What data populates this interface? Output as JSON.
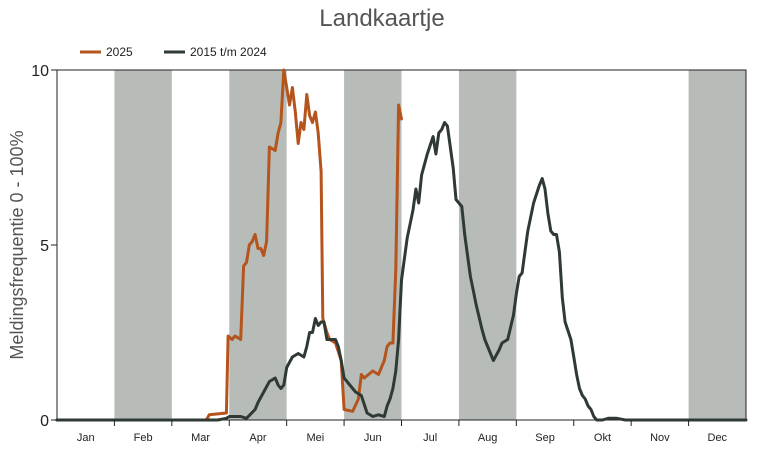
{
  "chart_data": {
    "type": "line",
    "title": "Landkaartje",
    "ylabel": "Meldingsfrequentie 0 - 100%",
    "xlabel": "",
    "ylim": [
      0,
      10
    ],
    "yticks": [
      0,
      5,
      10
    ],
    "xlim": [
      0,
      12
    ],
    "months": [
      "Jan",
      "Feb",
      "Mar",
      "Apr",
      "Mei",
      "Jun",
      "Jul",
      "Aug",
      "Sep",
      "Okt",
      "Nov",
      "Dec"
    ],
    "shaded_months": [
      1,
      3,
      5,
      7,
      11
    ],
    "shade_color": "#b8bcb8",
    "legend_position": "top-left",
    "series": [
      {
        "name": "2025",
        "color": "#b5541c",
        "points": [
          [
            0,
            0
          ],
          [
            2.6,
            0
          ],
          [
            2.65,
            0.15
          ],
          [
            2.95,
            0.2
          ],
          [
            2.98,
            2.4
          ],
          [
            3.05,
            2.3
          ],
          [
            3.1,
            2.4
          ],
          [
            3.2,
            2.3
          ],
          [
            3.25,
            4.4
          ],
          [
            3.3,
            4.5
          ],
          [
            3.35,
            5.0
          ],
          [
            3.4,
            5.1
          ],
          [
            3.45,
            5.3
          ],
          [
            3.5,
            4.9
          ],
          [
            3.55,
            4.9
          ],
          [
            3.6,
            4.7
          ],
          [
            3.65,
            5.1
          ],
          [
            3.7,
            7.8
          ],
          [
            3.8,
            7.7
          ],
          [
            3.85,
            8.2
          ],
          [
            3.9,
            8.5
          ],
          [
            3.95,
            10.0
          ],
          [
            4.0,
            9.5
          ],
          [
            4.05,
            9.0
          ],
          [
            4.1,
            9.5
          ],
          [
            4.15,
            8.8
          ],
          [
            4.2,
            7.9
          ],
          [
            4.25,
            8.5
          ],
          [
            4.3,
            8.3
          ],
          [
            4.35,
            9.3
          ],
          [
            4.4,
            8.7
          ],
          [
            4.45,
            8.5
          ],
          [
            4.5,
            8.8
          ],
          [
            4.55,
            8.2
          ],
          [
            4.6,
            7.1
          ],
          [
            4.63,
            2.9
          ],
          [
            4.7,
            2.5
          ],
          [
            4.75,
            2.3
          ],
          [
            4.85,
            2.2
          ],
          [
            4.95,
            1.7
          ],
          [
            5.0,
            0.3
          ],
          [
            5.15,
            0.25
          ],
          [
            5.25,
            0.6
          ],
          [
            5.3,
            1.3
          ],
          [
            5.35,
            1.2
          ],
          [
            5.5,
            1.4
          ],
          [
            5.6,
            1.3
          ],
          [
            5.7,
            1.7
          ],
          [
            5.75,
            2.1
          ],
          [
            5.8,
            2.2
          ],
          [
            5.85,
            2.2
          ],
          [
            5.9,
            4.3
          ],
          [
            5.95,
            9.0
          ],
          [
            6.0,
            8.6
          ]
        ]
      },
      {
        "name": "2015 t/m 2024",
        "color": "#2e3a33",
        "points": [
          [
            0,
            0
          ],
          [
            2.8,
            0
          ],
          [
            2.95,
            0.05
          ],
          [
            3.0,
            0.1
          ],
          [
            3.2,
            0.1
          ],
          [
            3.3,
            0.05
          ],
          [
            3.45,
            0.3
          ],
          [
            3.5,
            0.5
          ],
          [
            3.6,
            0.8
          ],
          [
            3.7,
            1.1
          ],
          [
            3.8,
            1.2
          ],
          [
            3.85,
            1.0
          ],
          [
            3.9,
            0.9
          ],
          [
            3.95,
            1.0
          ],
          [
            4.0,
            1.5
          ],
          [
            4.1,
            1.8
          ],
          [
            4.2,
            1.9
          ],
          [
            4.3,
            1.8
          ],
          [
            4.35,
            2.1
          ],
          [
            4.4,
            2.5
          ],
          [
            4.45,
            2.5
          ],
          [
            4.5,
            2.9
          ],
          [
            4.55,
            2.7
          ],
          [
            4.6,
            2.8
          ],
          [
            4.65,
            2.8
          ],
          [
            4.7,
            2.3
          ],
          [
            4.8,
            2.3
          ],
          [
            4.85,
            2.3
          ],
          [
            4.9,
            2.1
          ],
          [
            4.95,
            1.7
          ],
          [
            5.0,
            1.2
          ],
          [
            5.1,
            1.0
          ],
          [
            5.2,
            0.8
          ],
          [
            5.3,
            0.7
          ],
          [
            5.4,
            0.2
          ],
          [
            5.5,
            0.1
          ],
          [
            5.6,
            0.15
          ],
          [
            5.7,
            0.1
          ],
          [
            5.75,
            0.4
          ],
          [
            5.8,
            0.6
          ],
          [
            5.85,
            0.9
          ],
          [
            5.9,
            1.4
          ],
          [
            5.95,
            2.3
          ],
          [
            6.0,
            4.0
          ],
          [
            6.1,
            5.2
          ],
          [
            6.15,
            5.6
          ],
          [
            6.2,
            6.0
          ],
          [
            6.25,
            6.6
          ],
          [
            6.3,
            6.2
          ],
          [
            6.35,
            7.0
          ],
          [
            6.45,
            7.6
          ],
          [
            6.55,
            8.1
          ],
          [
            6.6,
            7.6
          ],
          [
            6.65,
            8.2
          ],
          [
            6.7,
            8.3
          ],
          [
            6.75,
            8.5
          ],
          [
            6.8,
            8.4
          ],
          [
            6.85,
            7.8
          ],
          [
            6.9,
            7.2
          ],
          [
            6.95,
            6.3
          ],
          [
            7.05,
            6.1
          ],
          [
            7.1,
            5.3
          ],
          [
            7.2,
            4.1
          ],
          [
            7.25,
            3.7
          ],
          [
            7.3,
            3.3
          ],
          [
            7.4,
            2.6
          ],
          [
            7.45,
            2.3
          ],
          [
            7.55,
            1.9
          ],
          [
            7.6,
            1.7
          ],
          [
            7.7,
            2.0
          ],
          [
            7.75,
            2.2
          ],
          [
            7.85,
            2.3
          ],
          [
            7.95,
            3.0
          ],
          [
            8.0,
            3.6
          ],
          [
            8.05,
            4.1
          ],
          [
            8.1,
            4.2
          ],
          [
            8.15,
            4.8
          ],
          [
            8.2,
            5.4
          ],
          [
            8.3,
            6.2
          ],
          [
            8.4,
            6.7
          ],
          [
            8.45,
            6.9
          ],
          [
            8.5,
            6.6
          ],
          [
            8.55,
            5.9
          ],
          [
            8.6,
            5.4
          ],
          [
            8.65,
            5.3
          ],
          [
            8.7,
            5.3
          ],
          [
            8.75,
            4.8
          ],
          [
            8.8,
            3.5
          ],
          [
            8.85,
            2.8
          ],
          [
            8.95,
            2.3
          ],
          [
            9.0,
            1.8
          ],
          [
            9.05,
            1.3
          ],
          [
            9.1,
            0.9
          ],
          [
            9.15,
            0.7
          ],
          [
            9.2,
            0.6
          ],
          [
            9.25,
            0.4
          ],
          [
            9.3,
            0.3
          ],
          [
            9.35,
            0.1
          ],
          [
            9.4,
            0.0
          ],
          [
            9.5,
            0.0
          ],
          [
            9.6,
            0.05
          ],
          [
            9.75,
            0.05
          ],
          [
            9.9,
            0.0
          ],
          [
            12,
            0.0
          ]
        ]
      }
    ]
  }
}
